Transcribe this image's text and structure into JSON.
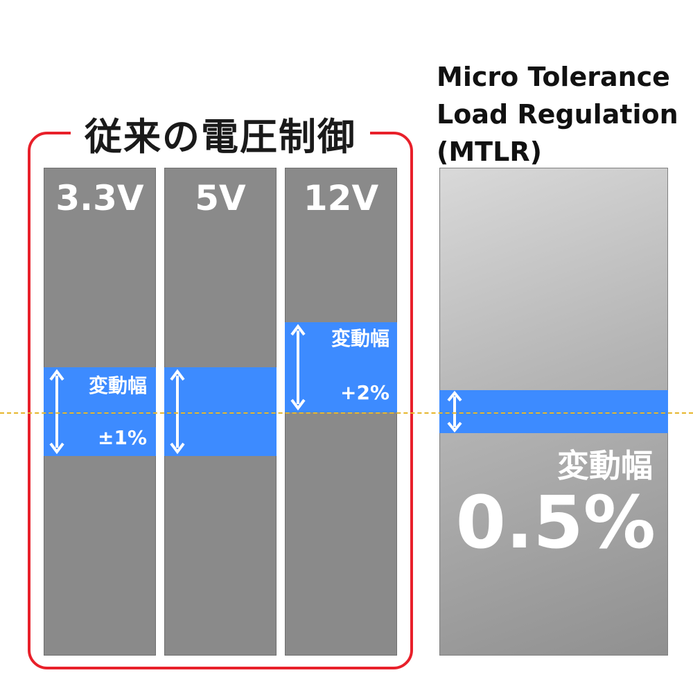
{
  "conventional": {
    "title": "従来の電圧制御",
    "columns": [
      {
        "label": "3.3V"
      },
      {
        "label": "5V"
      },
      {
        "label": "12V"
      }
    ],
    "band_label": "変動幅",
    "tolerance_33_5": "±1%",
    "tolerance_12": "+2%"
  },
  "mtlr": {
    "title_lines": [
      "Micro Tolerance",
      "Load Regulation",
      "(MTLR)"
    ],
    "band_label": "変動幅",
    "value": "0.5%"
  },
  "colors": {
    "frame_red": "#e8202a",
    "band_blue": "#3d8bff",
    "column_gray": "#8a8a8a",
    "dashed_line": "#e6b62c"
  },
  "icons": [
    "double-arrow-icon"
  ]
}
